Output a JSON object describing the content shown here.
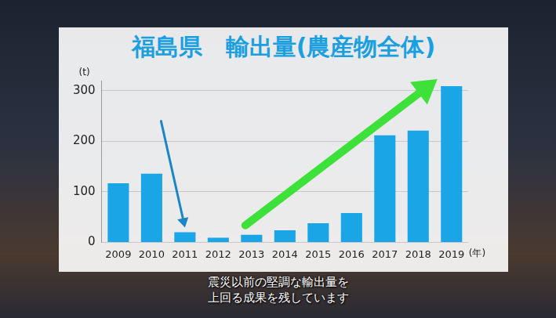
{
  "chart_data": {
    "type": "bar",
    "title": "福島県　輸出量(農産物全体)",
    "y_label": "(t)",
    "x_label": "(年)",
    "caption": "震災以前の堅調な輸出量を\n上回る成果を残しています",
    "categories": [
      "2009",
      "2010",
      "2011",
      "2012",
      "2013",
      "2014",
      "2015",
      "2016",
      "2017",
      "2018",
      "2019"
    ],
    "values": [
      117,
      136,
      20,
      9,
      15,
      24,
      38,
      58,
      212,
      221,
      309
    ],
    "color": "#1aa6e6",
    "ylim": [
      0,
      320
    ],
    "yticks": [
      0,
      100,
      200,
      300
    ],
    "grid": true
  }
}
